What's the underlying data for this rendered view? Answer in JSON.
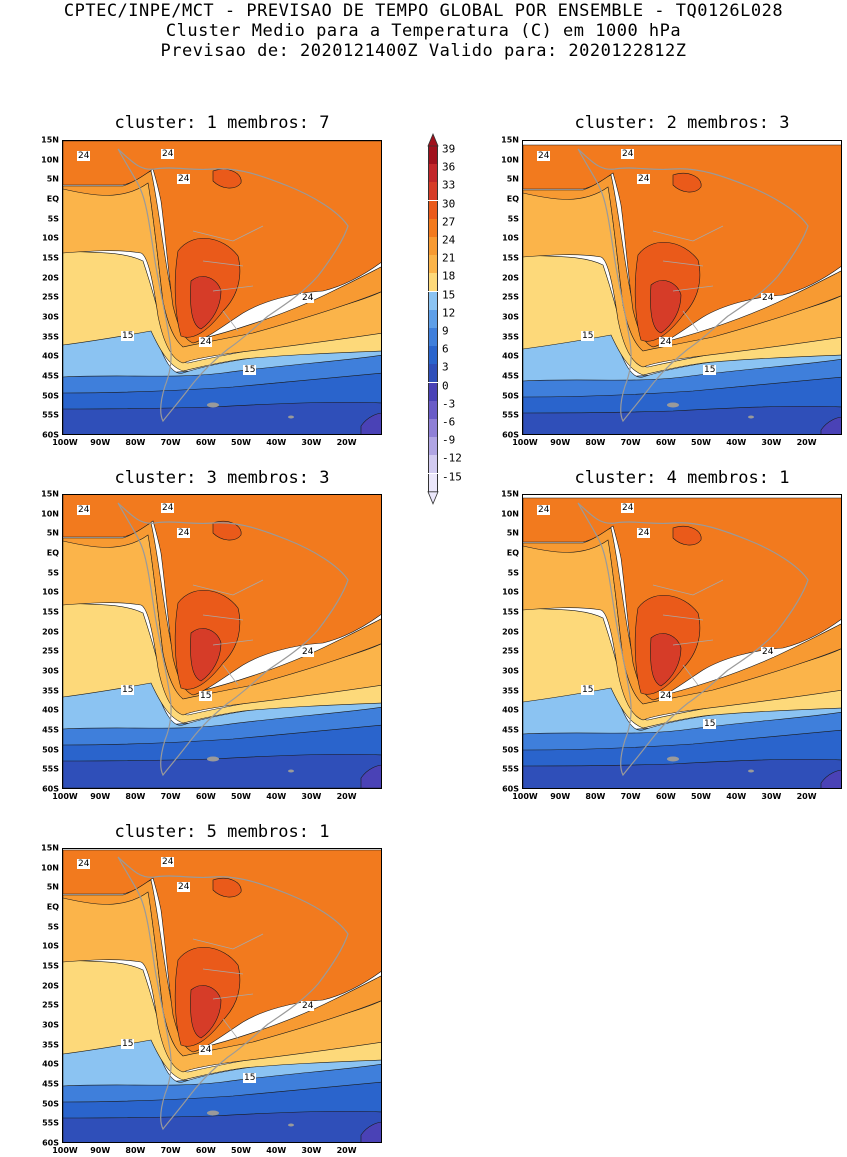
{
  "header": {
    "line1": "CPTEC/INPE/MCT - PREVISAO DE TEMPO GLOBAL POR ENSEMBLE - TQ0126L028",
    "line2": "Cluster Medio para a Temperatura (C) em 1000 hPa",
    "line3": "Previsao de: 2020121400Z   Valido para: 2020122812Z"
  },
  "lat_labels": [
    "15N",
    "10N",
    "5N",
    "EQ",
    "5S",
    "10S",
    "15S",
    "20S",
    "25S",
    "30S",
    "35S",
    "40S",
    "45S",
    "50S",
    "55S",
    "60S"
  ],
  "lon_labels": [
    "100W",
    "90W",
    "80W",
    "70W",
    "60W",
    "50W",
    "40W",
    "30W",
    "20W"
  ],
  "colorbar": {
    "labels": [
      "39",
      "36",
      "33",
      "30",
      "27",
      "24",
      "21",
      "18",
      "15",
      "12",
      "9",
      "6",
      "3",
      "0",
      "-3",
      "-6",
      "-9",
      "-12",
      "-15"
    ],
    "colors": [
      "#a0101c",
      "#c2262a",
      "#d63c28",
      "#ea5a1a",
      "#f27a1e",
      "#f79a32",
      "#fbb44a",
      "#fdd97a",
      "#8bc3f2",
      "#5e9fe8",
      "#3f7fdb",
      "#2a64cc",
      "#2f4fb9",
      "#4a42b6",
      "#6a5cc7",
      "#8f80d6",
      "#b0a5e3",
      "#d2cbf1",
      "#ebe7fb"
    ]
  },
  "panels": [
    {
      "title": "cluster: 1  membros: 7",
      "labels": [
        "24",
        "24",
        "24",
        "24",
        "24",
        "15",
        "15"
      ]
    },
    {
      "title": "cluster: 2  membros: 3",
      "labels": [
        "24",
        "24",
        "24",
        "24",
        "24",
        "15",
        "15"
      ]
    },
    {
      "title": "cluster: 3  membros: 3",
      "labels": [
        "24",
        "24",
        "24",
        "24",
        "15",
        "15"
      ]
    },
    {
      "title": "cluster: 4  membros: 1",
      "labels": [
        "24",
        "24",
        "24",
        "24",
        "24",
        "15",
        "15"
      ]
    },
    {
      "title": "cluster: 5  membros: 1",
      "labels": [
        "24",
        "24",
        "24",
        "24",
        "24",
        "15",
        "15"
      ]
    }
  ]
}
